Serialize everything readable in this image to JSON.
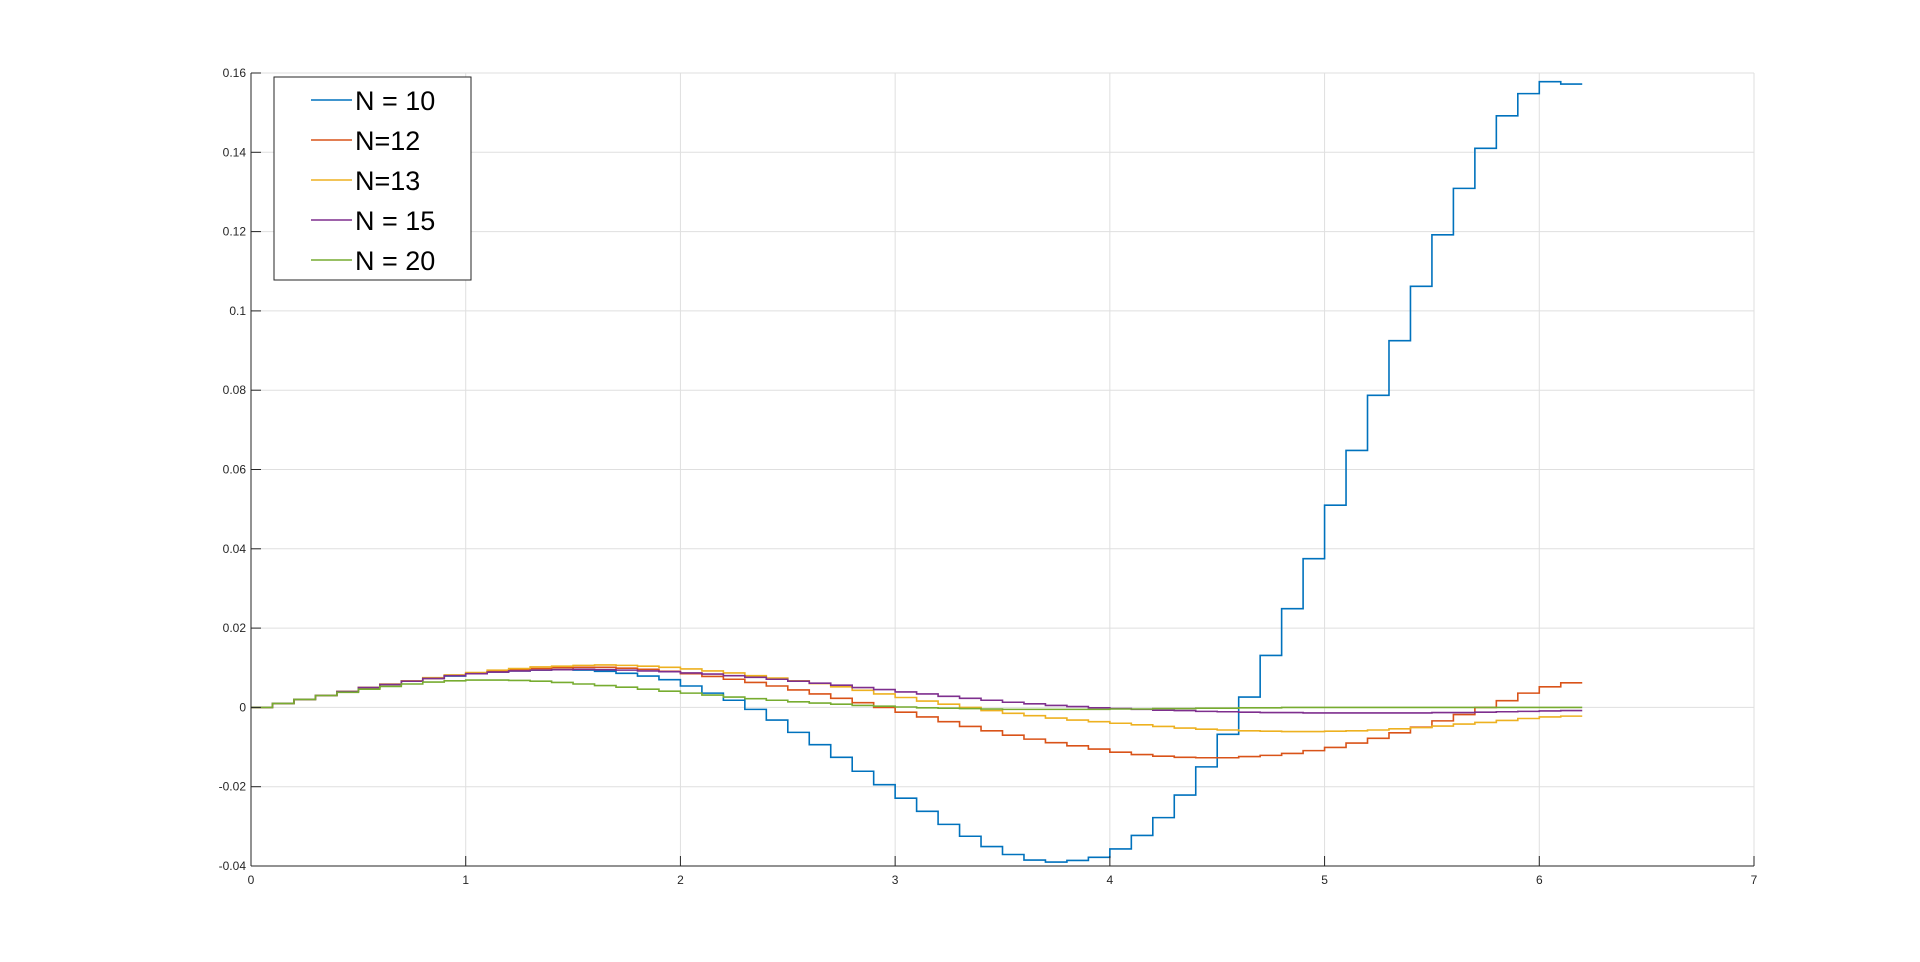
{
  "chart_data": {
    "type": "line",
    "step": true,
    "title": "",
    "xlabel": "",
    "ylabel": "",
    "xlim": [
      0,
      7
    ],
    "ylim": [
      -0.04,
      0.16
    ],
    "xticks": [
      0,
      1,
      2,
      3,
      4,
      5,
      6,
      7
    ],
    "xtick_labels": [
      "0",
      "1",
      "2",
      "3",
      "4",
      "5",
      "6",
      "7"
    ],
    "yticks": [
      -0.04,
      -0.02,
      0,
      0.02,
      0.04,
      0.06,
      0.08,
      0.1,
      0.12,
      0.14,
      0.16
    ],
    "ytick_labels": [
      "-0.04",
      "-0.02",
      "0",
      "0.02",
      "0.04",
      "0.06",
      "0.08",
      "0.1",
      "0.12",
      "0.14",
      "0.16"
    ],
    "grid": true,
    "legend_position": "top-left",
    "x": [
      0,
      0.1,
      0.2,
      0.3,
      0.4,
      0.5,
      0.6,
      0.7,
      0.8,
      0.9,
      1.0,
      1.1,
      1.2,
      1.3,
      1.4,
      1.5,
      1.6,
      1.7,
      1.8,
      1.9,
      2.0,
      2.1,
      2.2,
      2.3,
      2.4,
      2.5,
      2.6,
      2.7,
      2.8,
      2.9,
      3.0,
      3.1,
      3.2,
      3.3,
      3.4,
      3.5,
      3.6,
      3.7,
      3.8,
      3.9,
      4.0,
      4.1,
      4.2,
      4.3,
      4.4,
      4.5,
      4.6,
      4.7,
      4.8,
      4.9,
      5.0,
      5.1,
      5.2,
      5.3,
      5.4,
      5.5,
      5.6,
      5.7,
      5.8,
      5.9,
      6.0,
      6.1
    ],
    "series": [
      {
        "name": "N = 10",
        "color": "#0072BD",
        "values": [
          0,
          0.001,
          0.002,
          0.003,
          0.004,
          0.005,
          0.0058,
          0.0066,
          0.0073,
          0.0079,
          0.0085,
          0.0089,
          0.0092,
          0.0094,
          0.0095,
          0.0094,
          0.0091,
          0.0086,
          0.0079,
          0.007,
          0.0054,
          0.0036,
          0.0018,
          -0.0005,
          -0.0032,
          -0.0063,
          -0.0094,
          -0.0126,
          -0.0161,
          -0.0195,
          -0.0229,
          -0.0262,
          -0.0295,
          -0.0325,
          -0.0351,
          -0.0371,
          -0.0385,
          -0.039,
          -0.0386,
          -0.0378,
          -0.0357,
          -0.0323,
          -0.0278,
          -0.0221,
          -0.015,
          -0.0068,
          0.0026,
          0.0131,
          0.0249,
          0.0375,
          0.051,
          0.0648,
          0.0787,
          0.0925,
          0.1062,
          0.1192,
          0.1309,
          0.141,
          0.1492,
          0.1548,
          0.1578,
          0.1572
        ]
      },
      {
        "name": "N=12",
        "color": "#D95319",
        "values": [
          0,
          0.001,
          0.002,
          0.003,
          0.004,
          0.005,
          0.0058,
          0.0066,
          0.0073,
          0.008,
          0.0086,
          0.0091,
          0.0095,
          0.0098,
          0.01,
          0.0101,
          0.0101,
          0.0099,
          0.0096,
          0.0091,
          0.0085,
          0.0078,
          0.0071,
          0.0063,
          0.0054,
          0.0044,
          0.0034,
          0.0023,
          0.0012,
          0,
          -0.0012,
          -0.0024,
          -0.0036,
          -0.0048,
          -0.0059,
          -0.007,
          -0.008,
          -0.0089,
          -0.0097,
          -0.0105,
          -0.0113,
          -0.0119,
          -0.0123,
          -0.0126,
          -0.0127,
          -0.0127,
          -0.0124,
          -0.0121,
          -0.0116,
          -0.0109,
          -0.0101,
          -0.009,
          -0.0078,
          -0.0064,
          -0.005,
          -0.0034,
          -0.0018,
          0,
          0.0017,
          0.0036,
          0.0052,
          0.0062
        ]
      },
      {
        "name": "N=13",
        "color": "#EDB120",
        "values": [
          0,
          0.001,
          0.002,
          0.003,
          0.004,
          0.005,
          0.0059,
          0.0067,
          0.0075,
          0.0082,
          0.0088,
          0.0094,
          0.0098,
          0.0102,
          0.0104,
          0.0106,
          0.0107,
          0.0106,
          0.0104,
          0.0101,
          0.0097,
          0.0092,
          0.0087,
          0.008,
          0.0074,
          0.0067,
          0.006,
          0.0052,
          0.0043,
          0.0034,
          0.0025,
          0.0016,
          0.0008,
          0,
          -0.0008,
          -0.0015,
          -0.0021,
          -0.0027,
          -0.0032,
          -0.0036,
          -0.004,
          -0.0044,
          -0.0048,
          -0.0052,
          -0.0055,
          -0.0057,
          -0.0059,
          -0.006,
          -0.0061,
          -0.0061,
          -0.006,
          -0.0059,
          -0.0057,
          -0.0054,
          -0.0051,
          -0.0047,
          -0.0042,
          -0.0038,
          -0.0033,
          -0.0028,
          -0.0024,
          -0.0022
        ]
      },
      {
        "name": "N = 15",
        "color": "#7E2F8E",
        "values": [
          0,
          0.001,
          0.002,
          0.003,
          0.004,
          0.005,
          0.0058,
          0.0066,
          0.0073,
          0.008,
          0.0085,
          0.0089,
          0.0092,
          0.0094,
          0.0095,
          0.0096,
          0.0095,
          0.0094,
          0.0092,
          0.009,
          0.0087,
          0.0084,
          0.008,
          0.0076,
          0.0071,
          0.0066,
          0.0061,
          0.0056,
          0.005,
          0.0045,
          0.0039,
          0.0034,
          0.0028,
          0.0023,
          0.0018,
          0.0013,
          0.0009,
          0.0005,
          0.0002,
          -0.0001,
          -0.0003,
          -0.0005,
          -0.0007,
          -0.0008,
          -0.001,
          -0.0011,
          -0.0012,
          -0.0013,
          -0.0013,
          -0.0014,
          -0.0014,
          -0.0014,
          -0.0014,
          -0.0014,
          -0.0014,
          -0.0013,
          -0.0013,
          -0.0012,
          -0.0011,
          -0.001,
          -0.0009,
          -0.0008
        ]
      },
      {
        "name": "N = 20",
        "color": "#77AC30",
        "values": [
          0,
          0.001,
          0.002,
          0.003,
          0.0038,
          0.0046,
          0.0053,
          0.0059,
          0.0064,
          0.0067,
          0.0069,
          0.0069,
          0.0068,
          0.0066,
          0.0063,
          0.0059,
          0.0055,
          0.0051,
          0.0046,
          0.0041,
          0.0036,
          0.0031,
          0.0026,
          0.0022,
          0.0018,
          0.0014,
          0.0011,
          0.0008,
          0.0005,
          0.0003,
          0.0001,
          -0.0001,
          -0.0002,
          -0.0003,
          -0.0004,
          -0.0005,
          -0.0005,
          -0.0005,
          -0.0005,
          -0.0005,
          -0.0004,
          -0.0004,
          -0.0003,
          -0.0003,
          -0.0002,
          -0.0002,
          -0.0001,
          -0.0001,
          0,
          0,
          0,
          0,
          0,
          0,
          0,
          0,
          0,
          0,
          0,
          0,
          0,
          0
        ]
      }
    ]
  }
}
